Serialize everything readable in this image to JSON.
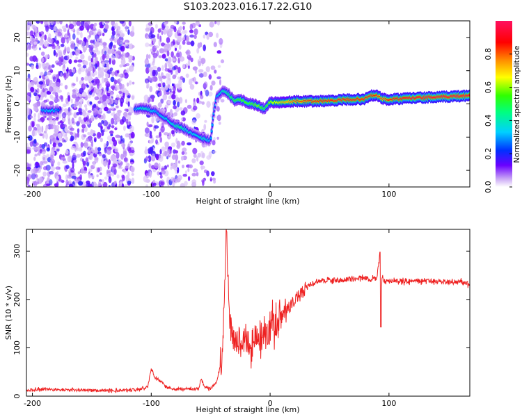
{
  "chart_data": [
    {
      "type": "heatmap",
      "title": "S103.2023.016.17.22.G10",
      "xlabel": "Height of straight line (km)",
      "ylabel": "Frequency (Hz)",
      "xlim": [
        -205,
        168
      ],
      "ylim": [
        -25,
        25
      ],
      "xticks": [
        -200,
        -100,
        0,
        100
      ],
      "yticks": [
        -20,
        -10,
        0,
        10,
        20
      ],
      "colorbar": {
        "label": "Normalized spectral amplitude",
        "range": [
          0,
          1
        ],
        "ticks": [
          0.0,
          0.2,
          0.4,
          0.6,
          0.8
        ],
        "tick_labels": [
          "0.0",
          "0.2",
          "0.4",
          "0.6",
          "0.8"
        ]
      },
      "ridge": {
        "x": [
          -205,
          -190,
          -185,
          -180,
          -175,
          -115,
          -110,
          -105,
          -100,
          -95,
          -90,
          -85,
          -80,
          -75,
          -70,
          -65,
          -60,
          -55,
          -50,
          -48,
          -45,
          -40,
          -35,
          -30,
          -25,
          -20,
          -15,
          -10,
          -5,
          0,
          5,
          10,
          20,
          40,
          60,
          80,
          85,
          90,
          95,
          100,
          105,
          110,
          120,
          140,
          168
        ],
        "y": [
          -2,
          -2,
          -2,
          -2,
          -2,
          -1.5,
          -1.5,
          -1.2,
          -2,
          -2.5,
          -4,
          -5,
          -6.5,
          -7,
          -8,
          -9,
          -10,
          -10.5,
          -11,
          -4,
          2,
          4,
          3,
          1,
          1.5,
          0.5,
          0,
          -0.5,
          -1.5,
          0.5,
          0.5,
          0.5,
          0.8,
          0.8,
          1.2,
          1.5,
          2.5,
          2.5,
          1.5,
          1.2,
          1.5,
          1.5,
          1.8,
          2,
          2.5
        ],
        "amplitude": [
          0.3,
          0.3,
          0.35,
          0.3,
          0.2,
          0.25,
          0.35,
          0.4,
          0.35,
          0.3,
          0.35,
          0.35,
          0.4,
          0.45,
          0.35,
          0.35,
          0.35,
          0.4,
          0.3,
          0.3,
          0.3,
          0.4,
          0.45,
          0.5,
          0.55,
          0.55,
          0.55,
          0.6,
          0.5,
          0.6,
          0.65,
          0.7,
          0.8,
          0.85,
          0.9,
          0.9,
          0.85,
          0.85,
          0.8,
          0.85,
          0.9,
          0.9,
          0.95,
          0.95,
          0.95
        ]
      }
    },
    {
      "type": "line",
      "title": "",
      "xlabel": "Height of straight line (km)",
      "ylabel": "SNR (10 * v/v)",
      "xlim": [
        -205,
        168
      ],
      "ylim": [
        0,
        345
      ],
      "xticks": [
        -200,
        -100,
        0,
        100
      ],
      "yticks": [
        0,
        100,
        200,
        300
      ],
      "series": [
        {
          "name": "SNR",
          "color": "#ee2222",
          "x": [
            -205,
            -190,
            -170,
            -150,
            -130,
            -110,
            -103,
            -100,
            -97,
            -92,
            -88,
            -80,
            -70,
            -60,
            -58,
            -55,
            -50,
            -45,
            -40,
            -37,
            -34,
            -32,
            -30,
            -25,
            -20,
            -15,
            -10,
            -5,
            0,
            5,
            10,
            15,
            20,
            25,
            30,
            35,
            40,
            50,
            60,
            70,
            80,
            85,
            90,
            92,
            93,
            94,
            96,
            100,
            110,
            120,
            130,
            140,
            150,
            160,
            168
          ],
          "y": [
            12,
            14,
            13,
            12,
            12,
            14,
            20,
            55,
            40,
            30,
            20,
            15,
            15,
            15,
            35,
            20,
            15,
            30,
            80,
            340,
            150,
            130,
            120,
            110,
            120,
            110,
            120,
            130,
            140,
            160,
            170,
            180,
            195,
            210,
            225,
            232,
            238,
            240,
            240,
            242,
            245,
            240,
            245,
            290,
            150,
            250,
            238,
            238,
            238,
            238,
            238,
            238,
            236,
            236,
            232
          ]
        }
      ]
    }
  ]
}
